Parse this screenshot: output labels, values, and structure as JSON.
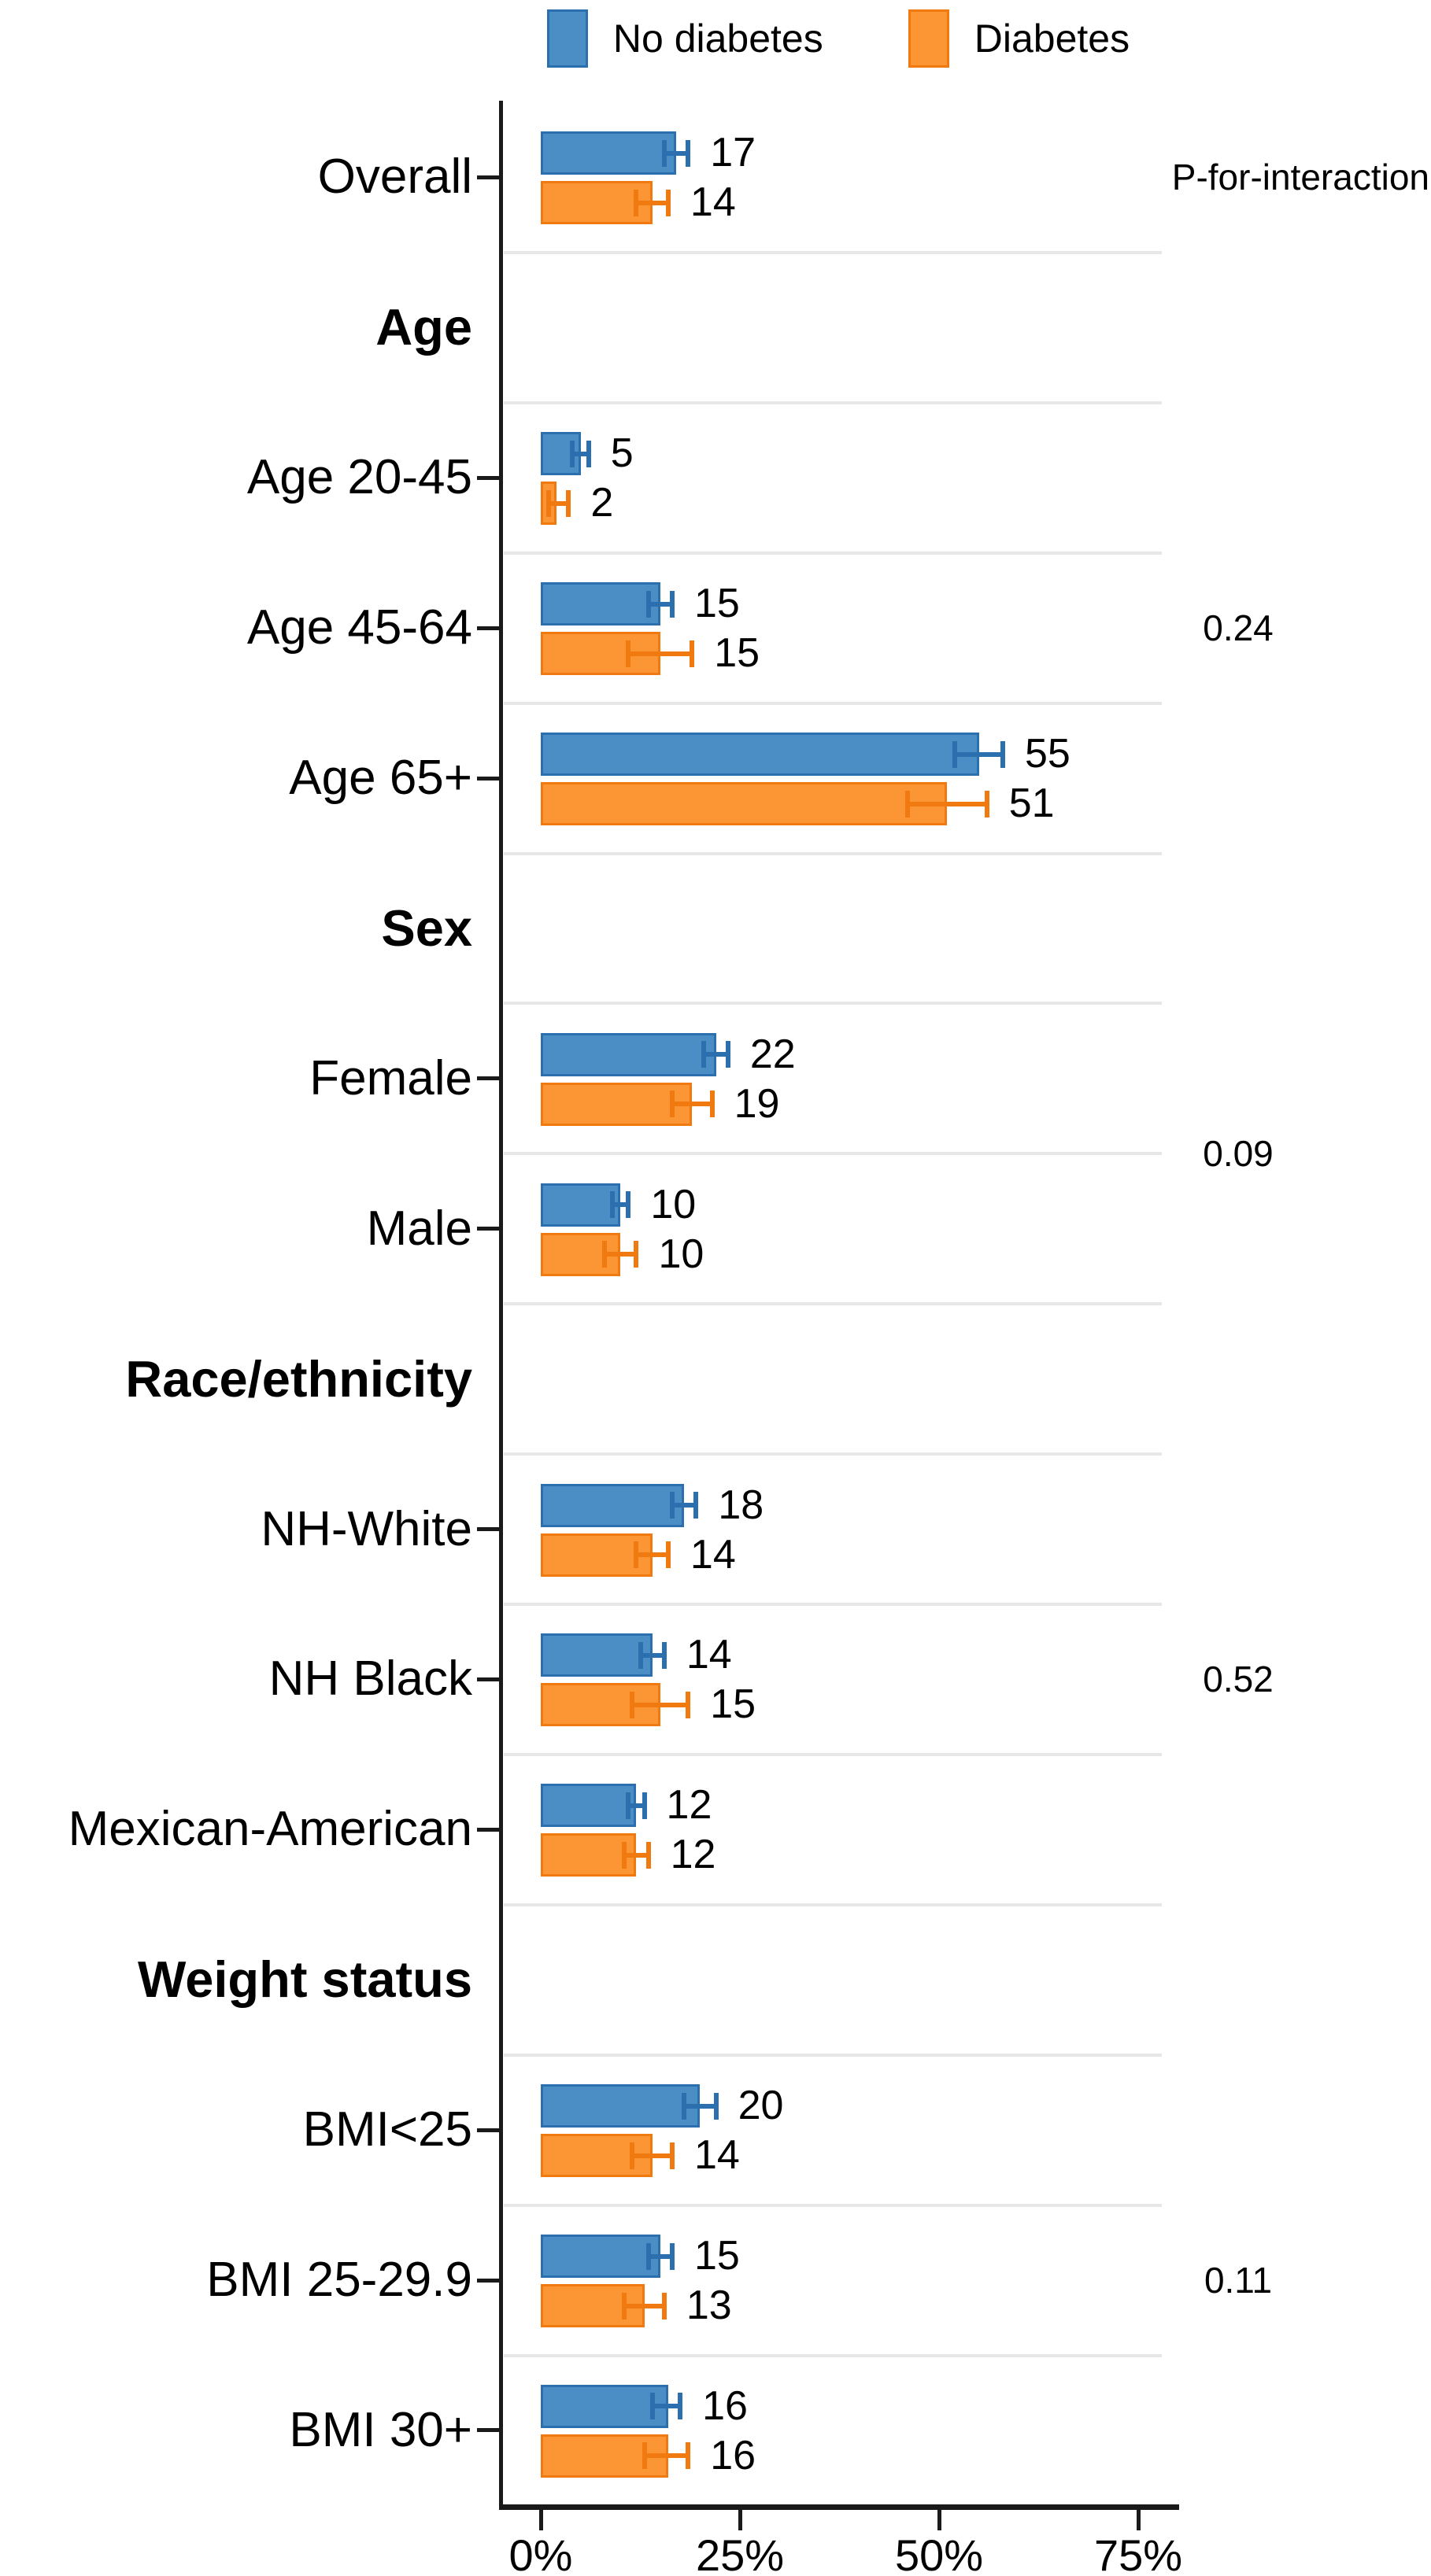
{
  "legend": {
    "items": [
      {
        "key": "no_diabetes",
        "label": "No diabetes"
      },
      {
        "key": "diabetes",
        "label": "Diabetes"
      }
    ]
  },
  "p_interaction": {
    "header": "P-for-interaction",
    "values": [
      {
        "group": "Age",
        "value": "0.24",
        "from_row": 2,
        "to_row": 4
      },
      {
        "group": "Sex",
        "value": "0.09",
        "from_row": 6,
        "to_row": 7
      },
      {
        "group": "Race/ethnicity",
        "value": "0.52",
        "from_row": 9,
        "to_row": 11
      },
      {
        "group": "Weight status",
        "value": "0.11",
        "from_row": 13,
        "to_row": 15
      }
    ]
  },
  "colors": {
    "no_diabetes_fill": "#4b8ec5",
    "no_diabetes_dark": "#2c6fae",
    "diabetes_fill": "#fc9634",
    "diabetes_dark": "#f17a10",
    "axis": "#1a1a1a",
    "separator": "#e7e7e7"
  },
  "chart_data": {
    "type": "bar",
    "orientation": "horizontal",
    "unit": "%",
    "series": [
      "No diabetes",
      "Diabetes"
    ],
    "xlabel": "",
    "ylabel": "",
    "x_axis": {
      "tick_labels": [
        "0%",
        "25%",
        "50%",
        "75%"
      ],
      "tick_values": [
        0,
        25,
        50,
        75
      ],
      "range": [
        0,
        80
      ]
    },
    "grid": "row-separators",
    "legend_position": "top-center",
    "rows": [
      {
        "label": "Overall",
        "kind": "data",
        "no_diabetes": {
          "value": 17,
          "ci": [
            15.5,
            18.5
          ]
        },
        "diabetes": {
          "value": 14,
          "ci": [
            12,
            16
          ]
        }
      },
      {
        "label": "Age",
        "kind": "header"
      },
      {
        "label": "Age 20-45",
        "kind": "data",
        "no_diabetes": {
          "value": 5,
          "ci": [
            4,
            6
          ]
        },
        "diabetes": {
          "value": 2,
          "ci": [
            1,
            3.5
          ]
        }
      },
      {
        "label": "Age 45-64",
        "kind": "data",
        "no_diabetes": {
          "value": 15,
          "ci": [
            13.5,
            16.5
          ]
        },
        "diabetes": {
          "value": 15,
          "ci": [
            11,
            19
          ]
        }
      },
      {
        "label": "Age 65+",
        "kind": "data",
        "no_diabetes": {
          "value": 55,
          "ci": [
            52,
            58
          ]
        },
        "diabetes": {
          "value": 51,
          "ci": [
            46,
            56
          ]
        }
      },
      {
        "label": "Sex",
        "kind": "header"
      },
      {
        "label": "Female",
        "kind": "data",
        "no_diabetes": {
          "value": 22,
          "ci": [
            20.5,
            23.5
          ]
        },
        "diabetes": {
          "value": 19,
          "ci": [
            16.5,
            21.5
          ]
        }
      },
      {
        "label": "Male",
        "kind": "data",
        "no_diabetes": {
          "value": 10,
          "ci": [
            9,
            11
          ]
        },
        "diabetes": {
          "value": 10,
          "ci": [
            8,
            12
          ]
        }
      },
      {
        "label": "Race/ethnicity",
        "kind": "header"
      },
      {
        "label": "NH-White",
        "kind": "data",
        "no_diabetes": {
          "value": 18,
          "ci": [
            16.5,
            19.5
          ]
        },
        "diabetes": {
          "value": 14,
          "ci": [
            12,
            16
          ]
        }
      },
      {
        "label": "NH Black",
        "kind": "data",
        "no_diabetes": {
          "value": 14,
          "ci": [
            12.5,
            15.5
          ]
        },
        "diabetes": {
          "value": 15,
          "ci": [
            11.5,
            18.5
          ]
        }
      },
      {
        "label": "Mexican-American",
        "kind": "data",
        "no_diabetes": {
          "value": 12,
          "ci": [
            11,
            13
          ]
        },
        "diabetes": {
          "value": 12,
          "ci": [
            10.5,
            13.5
          ]
        }
      },
      {
        "label": "Weight status",
        "kind": "header"
      },
      {
        "label": "BMI<25",
        "kind": "data",
        "no_diabetes": {
          "value": 20,
          "ci": [
            18,
            22
          ]
        },
        "diabetes": {
          "value": 14,
          "ci": [
            11.5,
            16.5
          ]
        }
      },
      {
        "label": "BMI 25-29.9",
        "kind": "data",
        "no_diabetes": {
          "value": 15,
          "ci": [
            13.5,
            16.5
          ]
        },
        "diabetes": {
          "value": 13,
          "ci": [
            10.5,
            15.5
          ]
        }
      },
      {
        "label": "BMI 30+",
        "kind": "data",
        "no_diabetes": {
          "value": 16,
          "ci": [
            14,
            17.5
          ]
        },
        "diabetes": {
          "value": 16,
          "ci": [
            13,
            18.5
          ]
        }
      }
    ]
  }
}
